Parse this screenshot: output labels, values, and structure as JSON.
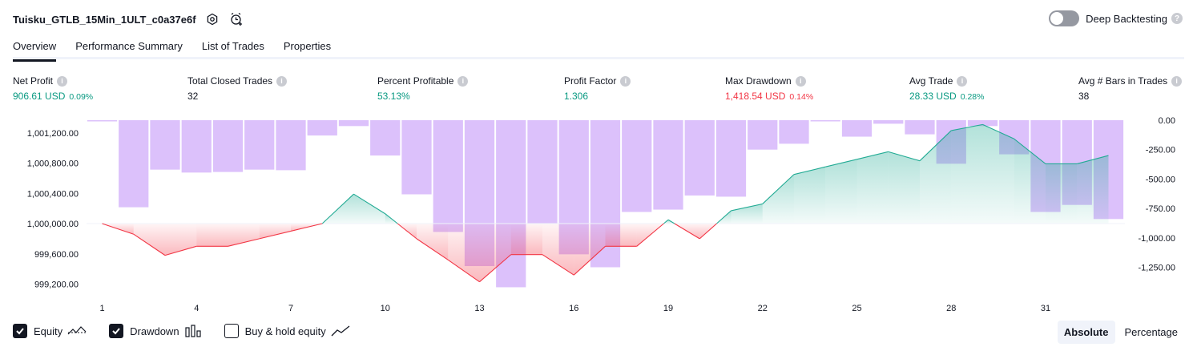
{
  "header": {
    "strategy_title": "Tuisku_GTLB_15Min_1ULT_c0a37e6f",
    "deep_backtesting_label": "Deep Backtesting",
    "help_glyph": "?"
  },
  "tabs": [
    {
      "label": "Overview",
      "active": true
    },
    {
      "label": "Performance Summary",
      "active": false
    },
    {
      "label": "List of Trades",
      "active": false
    },
    {
      "label": "Properties",
      "active": false
    }
  ],
  "metrics": {
    "net_profit": {
      "label": "Net Profit",
      "value": "906.61 USD",
      "pct": "0.09%"
    },
    "total_closed_trades": {
      "label": "Total Closed Trades",
      "value": "32"
    },
    "percent_profitable": {
      "label": "Percent Profitable",
      "value": "53.13%"
    },
    "profit_factor": {
      "label": "Profit Factor",
      "value": "1.306"
    },
    "max_drawdown": {
      "label": "Max Drawdown",
      "value": "1,418.54 USD",
      "pct": "0.14%"
    },
    "avg_trade": {
      "label": "Avg Trade",
      "value": "28.33 USD",
      "pct": "0.28%"
    },
    "avg_bars": {
      "label": "Avg # Bars in Trades",
      "value": "38"
    }
  },
  "colors": {
    "green": "#089981",
    "red": "#f23645",
    "drawdown_bar": "#dcc1fb",
    "equity_line_up": "#22ab94",
    "equity_line_down": "#f23645"
  },
  "chart_data": {
    "type": "line",
    "equity": {
      "name": "Equity",
      "x": [
        1,
        2,
        3,
        4,
        5,
        6,
        7,
        8,
        9,
        10,
        11,
        12,
        13,
        14,
        15,
        16,
        17,
        18,
        19,
        20,
        21,
        22,
        23,
        24,
        25,
        26,
        27,
        28,
        29,
        30,
        31,
        32,
        33
      ],
      "values": [
        1000000,
        999860,
        999580,
        999700,
        999700,
        999800,
        999900,
        1000000,
        1000390,
        1000130,
        999800,
        999520,
        999230,
        999590,
        999590,
        999320,
        999700,
        999700,
        1000050,
        999800,
        1000170,
        1000260,
        1000650,
        1000750,
        1000850,
        1000950,
        1000830,
        1001230,
        1001310,
        1001120,
        1000790,
        1000790,
        1000900
      ]
    },
    "drawdown": {
      "name": "Drawdown",
      "x": [
        1,
        2,
        3,
        4,
        5,
        6,
        7,
        8,
        9,
        10,
        11,
        12,
        13,
        14,
        15,
        16,
        17,
        18,
        19,
        20,
        21,
        22,
        23,
        24,
        25,
        26,
        27,
        28,
        29,
        30,
        31,
        32,
        33
      ],
      "values": [
        -10,
        -740,
        -420,
        -445,
        -440,
        -420,
        -425,
        -130,
        -50,
        -300,
        -630,
        -950,
        -1240,
        -1420,
        -880,
        -1140,
        -1250,
        -780,
        -760,
        -640,
        -650,
        -250,
        -200,
        0,
        -140,
        -30,
        -120,
        -370,
        -50,
        -290,
        -780,
        -720,
        -840
      ]
    },
    "left_axis": {
      "ticks": [
        1001200,
        1000800,
        1000400,
        1000000,
        999600,
        999200
      ],
      "tick_labels": [
        "1,001,200.00",
        "1,000,800.00",
        "1,000,400.00",
        "1,000,000.00",
        "999,600.00",
        "999,200.00"
      ],
      "range": [
        999000,
        1001450
      ]
    },
    "right_axis": {
      "ticks": [
        0,
        -250,
        -500,
        -750,
        -1000,
        -1250
      ],
      "tick_labels": [
        "0.00",
        "-250.00",
        "-500.00",
        "-750.00",
        "-1,000.00",
        "-1,250.00"
      ],
      "range": [
        -1430,
        0
      ]
    },
    "x_tick_labels": [
      "1",
      "4",
      "7",
      "10",
      "13",
      "16",
      "19",
      "22",
      "25",
      "28",
      "31"
    ],
    "x_ticks": [
      1,
      4,
      7,
      10,
      13,
      16,
      19,
      22,
      25,
      28,
      31
    ]
  },
  "legend": {
    "equity": {
      "label": "Equity",
      "checked": true
    },
    "drawdown": {
      "label": "Drawdown",
      "checked": true
    },
    "buy_hold": {
      "label": "Buy & hold equity",
      "checked": false
    }
  },
  "modes": {
    "absolute": "Absolute",
    "percentage": "Percentage"
  }
}
